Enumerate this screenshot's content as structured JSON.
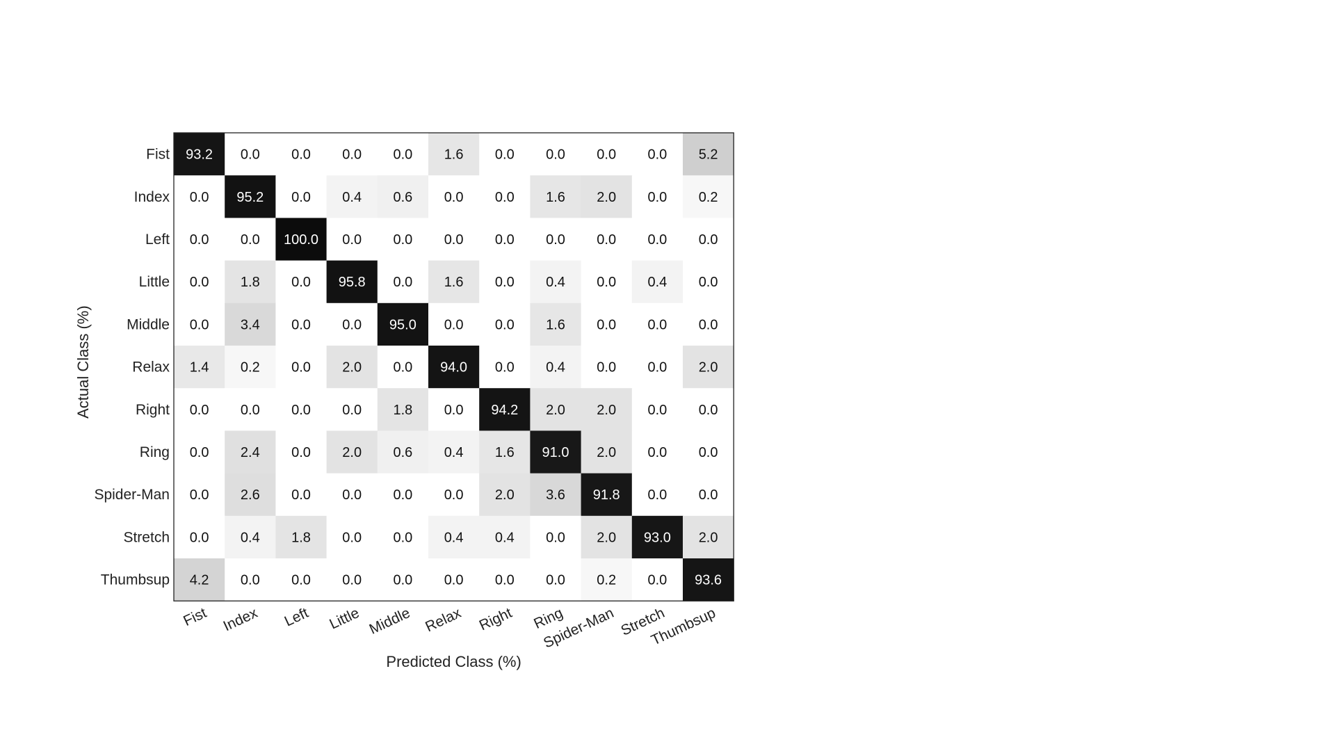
{
  "chart_data": {
    "type": "heatmap",
    "title": "",
    "xlabel": "Predicted Class (%)",
    "ylabel": "Actual Class (%)",
    "x_categories": [
      "Fist",
      "Index",
      "Left",
      "Little",
      "Middle",
      "Relax",
      "Right",
      "Ring",
      "Spider-Man",
      "Stretch",
      "Thumbsup"
    ],
    "y_categories": [
      "Fist",
      "Index",
      "Left",
      "Little",
      "Middle",
      "Relax",
      "Right",
      "Ring",
      "Spider-Man",
      "Stretch",
      "Thumbsup"
    ],
    "value_range": [
      0,
      100
    ],
    "colormap": "grayscale-reversed",
    "cell_labels": [
      [
        "93.2",
        "0.0",
        "0.0",
        "0.0",
        "0.0",
        "1.6",
        "0.0",
        "0.0",
        "0.0",
        "0.0",
        "5.2"
      ],
      [
        "0.0",
        "95.2",
        "0.0",
        "0.4",
        "0.6",
        "0.0",
        "0.0",
        "1.6",
        "2.0",
        "0.0",
        "0.2"
      ],
      [
        "0.0",
        "0.0",
        "100.0",
        "0.0",
        "0.0",
        "0.0",
        "0.0",
        "0.0",
        "0.0",
        "0.0",
        "0.0"
      ],
      [
        "0.0",
        "1.8",
        "0.0",
        "95.8",
        "0.0",
        "1.6",
        "0.0",
        "0.4",
        "0.0",
        "0.4",
        "0.0"
      ],
      [
        "0.0",
        "3.4",
        "0.0",
        "0.0",
        "95.0",
        "0.0",
        "0.0",
        "1.6",
        "0.0",
        "0.0",
        "0.0"
      ],
      [
        "1.4",
        "0.2",
        "0.0",
        "2.0",
        "0.0",
        "94.0",
        "0.0",
        "0.4",
        "0.0",
        "0.0",
        "2.0"
      ],
      [
        "0.0",
        "0.0",
        "0.0",
        "0.0",
        "1.8",
        "0.0",
        "94.2",
        "2.0",
        "2.0",
        "0.0",
        "0.0"
      ],
      [
        "0.0",
        "2.4",
        "0.0",
        "2.0",
        "0.6",
        "0.4",
        "1.6",
        "91.0",
        "2.0",
        "0.0",
        "0.0"
      ],
      [
        "0.0",
        "2.6",
        "0.0",
        "0.0",
        "0.0",
        "0.0",
        "2.0",
        "3.6",
        "91.8",
        "0.0",
        "0.0"
      ],
      [
        "0.0",
        "0.4",
        "1.8",
        "0.0",
        "0.0",
        "0.4",
        "0.4",
        "0.0",
        "2.0",
        "93.0",
        "2.0"
      ],
      [
        "4.2",
        "0.0",
        "0.0",
        "0.0",
        "0.0",
        "0.0",
        "0.0",
        "0.0",
        "0.2",
        "0.0",
        "93.6"
      ]
    ]
  }
}
